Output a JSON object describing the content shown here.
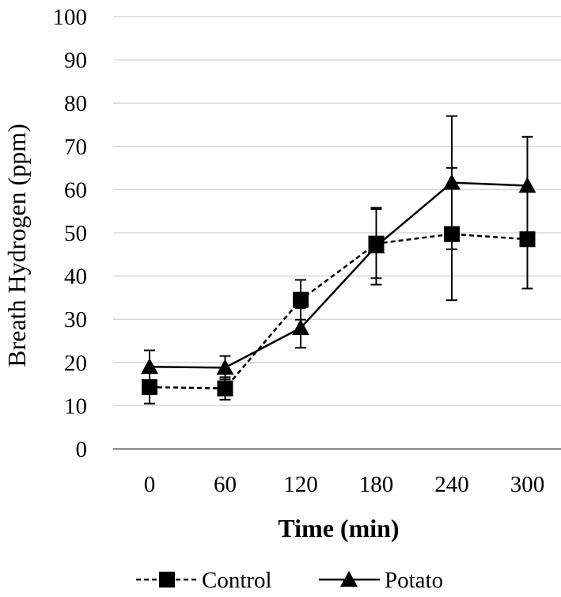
{
  "chart_data": {
    "type": "line",
    "title": "",
    "xlabel": "Time (min)",
    "ylabel": "Breath Hydrogen (ppm)",
    "categories": [
      "0",
      "60",
      "120",
      "180",
      "240",
      "300"
    ],
    "ylim": [
      0,
      100
    ],
    "yticks": [
      0,
      10,
      20,
      30,
      40,
      50,
      60,
      70,
      80,
      90,
      100
    ],
    "grid": true,
    "legend_position": "bottom",
    "series": [
      {
        "name": "Control",
        "marker": "square",
        "line_style": "dashed",
        "values": [
          14.3,
          14.0,
          34.5,
          47.5,
          49.7,
          48.5
        ],
        "error": [
          3.8,
          2.6,
          4.6,
          8.0,
          15.3,
          11.4
        ]
      },
      {
        "name": "Potato",
        "marker": "triangle",
        "line_style": "solid",
        "values": [
          19.0,
          18.8,
          28.0,
          46.9,
          61.6,
          60.9
        ],
        "error": [
          3.8,
          2.7,
          4.6,
          8.9,
          15.4,
          11.3
        ]
      }
    ],
    "colors": {
      "line": "#000000",
      "grid": "#d9d9d9",
      "axis": "#8c8c8c"
    }
  }
}
